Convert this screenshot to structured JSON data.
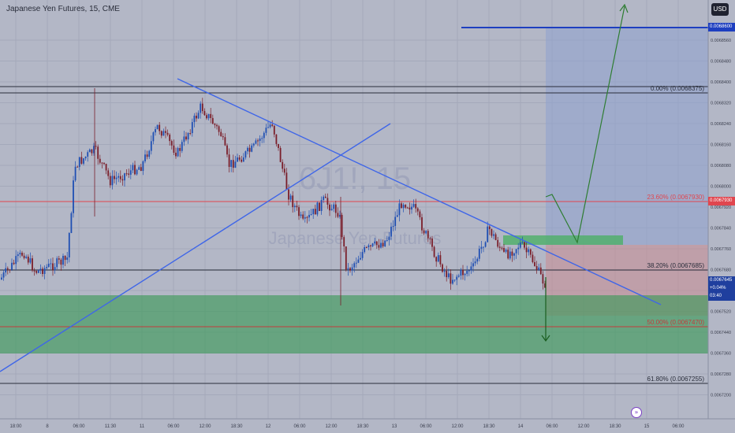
{
  "header": {
    "title": "Japanese Yen Futures, 15, CME",
    "currency": "USD"
  },
  "watermark": {
    "symbol": "6J1!, 15",
    "name": "Japanese Yen Futures"
  },
  "fib_levels": [
    {
      "label": "0.00% (0.0068375)",
      "color": "#2a2e3b"
    },
    {
      "label": "23.60% (0.0067930)",
      "color": "#e0464f"
    },
    {
      "label": "38.20% (0.0067685)",
      "color": "#2a2e3b"
    },
    {
      "label": "50.00% (0.0067470)",
      "color": "#c33b3b"
    },
    {
      "label": "61.80% (0.0067255)",
      "color": "#2a2e3b"
    }
  ],
  "price_axis": {
    "ticks": [
      "0.0068560",
      "0.0068480",
      "0.0068400",
      "0.0068320",
      "0.0068240",
      "0.0068160",
      "0.0068080",
      "0.0068000",
      "0.0067920",
      "0.0067840",
      "0.0067760",
      "0.0067680",
      "0.0067600",
      "0.0067520",
      "0.0067440",
      "0.0067360",
      "0.0067280",
      "0.0067200"
    ],
    "target_tag": "0.0068600",
    "fib23_tag": "0.0067930"
  },
  "last_price": {
    "price": "0.0067645",
    "change": "+0.04%",
    "countdown": "03:40"
  },
  "time_axis": [
    "18:00",
    "8",
    "06:00",
    "11:30",
    "11",
    "06:00",
    "12:00",
    "18:30",
    "12",
    "06:00",
    "12:00",
    "18:30",
    "13",
    "06:00",
    "12:00",
    "18:30",
    "14",
    "06:00",
    "12:00",
    "18:30",
    "15",
    "06:00"
  ],
  "colors": {
    "background": "#b3b7c6",
    "trend_line": "#3f66e8",
    "target_line": "#1e3fc0",
    "projection": "#2e7d32",
    "candle_up": "#1f4fb3",
    "candle_down": "#7a1e2a",
    "zone_green": "#3f9a5a",
    "zone_red": "#c98c92"
  },
  "icons": {
    "replay": "replay-icon"
  }
}
